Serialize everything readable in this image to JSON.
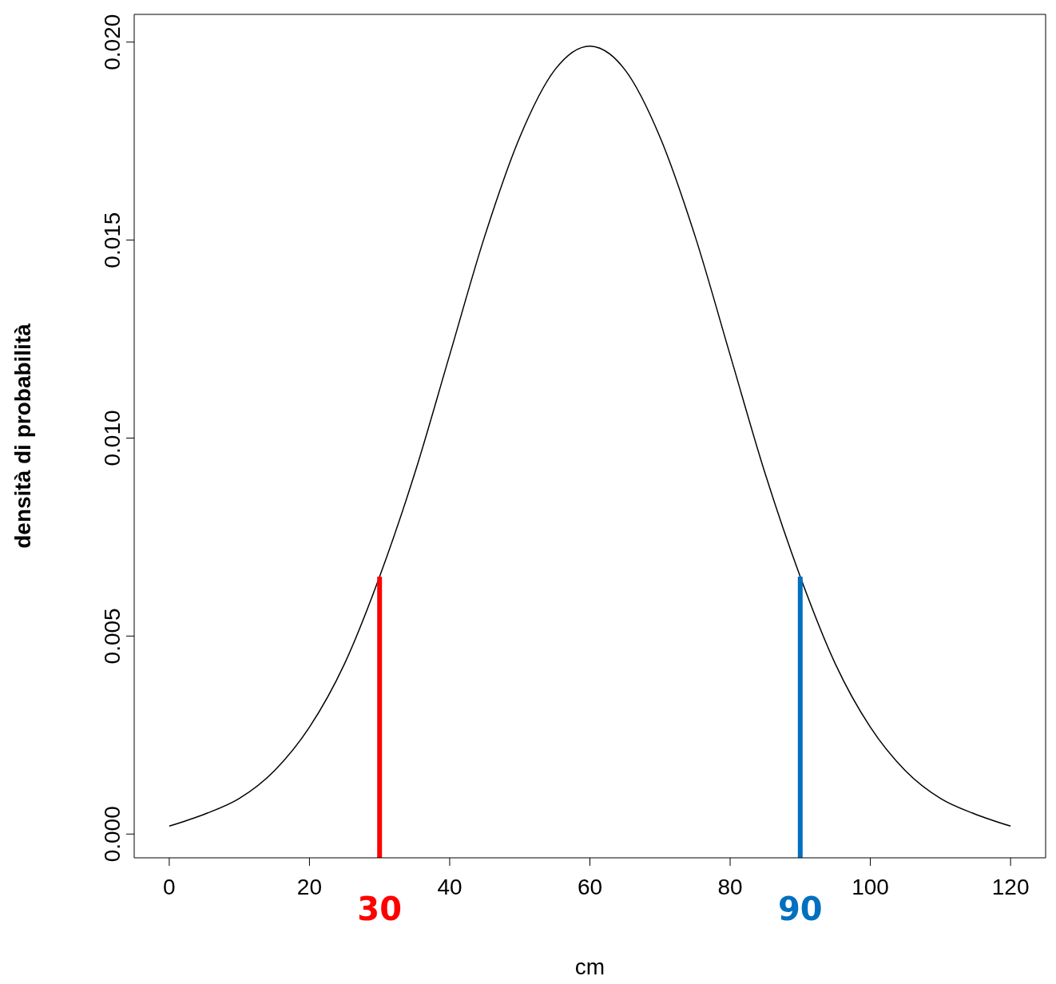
{
  "chart_data": {
    "type": "line",
    "xlabel": "cm",
    "ylabel": "densità di probabilità",
    "x": [
      0,
      5,
      10,
      15,
      20,
      25,
      30,
      35,
      40,
      45,
      50,
      55,
      60,
      65,
      70,
      75,
      80,
      85,
      90,
      95,
      100,
      105,
      110,
      115,
      120
    ],
    "series": [
      {
        "color": "#000000",
        "values": [
          0.0002,
          0.0005,
          0.0009,
          0.0016,
          0.0027,
          0.0043,
          0.0065,
          0.0091,
          0.0121,
          0.0151,
          0.0176,
          0.0193,
          0.0199,
          0.0193,
          0.0176,
          0.0151,
          0.0121,
          0.0091,
          0.0065,
          0.0043,
          0.0027,
          0.0016,
          0.0009,
          0.0005,
          0.0002
        ]
      }
    ],
    "xlim": [
      -5,
      125
    ],
    "xticks": [
      0,
      20,
      40,
      60,
      80,
      100,
      120
    ],
    "ylim": [
      -0.0006,
      0.0207
    ],
    "yticks": [
      {
        "value": 0,
        "label": "0.000"
      },
      {
        "value": 0.005,
        "label": "0.005"
      },
      {
        "value": 0.01,
        "label": "0.010"
      },
      {
        "value": 0.015,
        "label": "0.015"
      },
      {
        "value": 0.02,
        "label": "0.020"
      }
    ],
    "ref_lines": [
      {
        "axis": "x",
        "value": 30,
        "label": "30",
        "color": "#ff0000"
      },
      {
        "axis": "x",
        "value": 90,
        "label": "90",
        "color": "#0070c0"
      }
    ],
    "grid": false,
    "legend": false,
    "marker": "none",
    "line_style": "solid"
  }
}
